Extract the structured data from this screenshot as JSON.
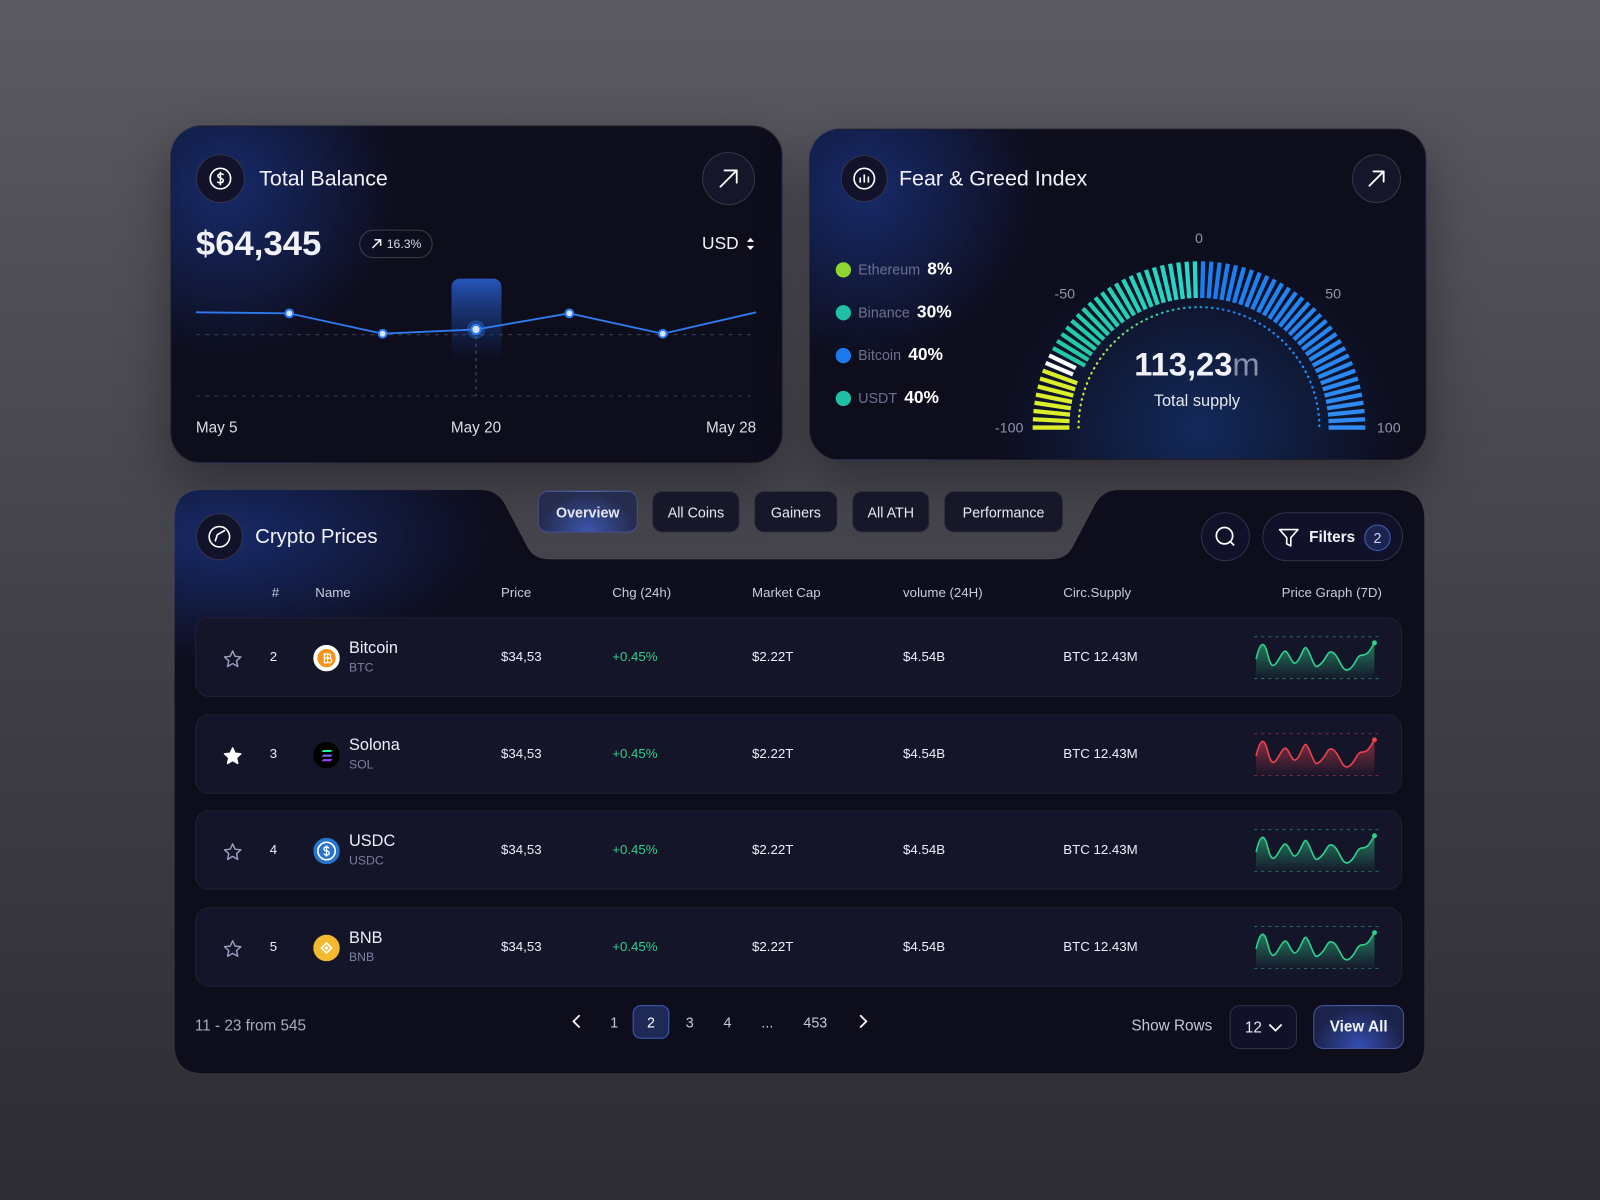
{
  "balance_card": {
    "title": "Total Balance",
    "amount": "$64,345",
    "change": "16.3%",
    "currency": "USD",
    "chart": {
      "type": "line",
      "categories": [
        "May 5",
        null,
        null,
        "May 20",
        null,
        null,
        "May 28"
      ],
      "values": [
        79,
        78,
        59,
        63,
        78,
        59,
        79
      ],
      "ylim": [
        0,
        100
      ],
      "color": "#2f7cf0",
      "highlight_index": 3
    }
  },
  "fear_greed_card": {
    "title": "Fear & Greed Index",
    "legend": [
      {
        "name": "Ethereum",
        "value": "8%",
        "color": "#8fd630"
      },
      {
        "name": "Binance",
        "value": "30%",
        "color": "#1fbfa5"
      },
      {
        "name": "Bitcoin",
        "value": "40%",
        "color": "#1a7bf0"
      },
      {
        "name": "USDT",
        "value": "40%",
        "color": "#1fbfa5"
      }
    ],
    "gauge": {
      "range": [
        -100,
        100
      ],
      "ticks": [
        -100,
        -50,
        0,
        50,
        100
      ]
    },
    "total": {
      "value": "113,23",
      "unit": "m",
      "label": "Total supply"
    }
  },
  "crypto_card": {
    "title": "Crypto Prices",
    "tabs": [
      "Overview",
      "All Coins",
      "Gainers",
      "All ATH",
      "Performance"
    ],
    "active_tab": 0,
    "filters": {
      "label": "Filters",
      "count": "2"
    },
    "columns": [
      "#",
      "Name",
      "Price",
      "Chg (24h)",
      "Market Cap",
      "volume (24H)",
      "Circ.Supply",
      "Price Graph (7D)"
    ],
    "rows": [
      {
        "favorite": false,
        "rank": 2,
        "name": "Bitcoin",
        "symbol": "BTC",
        "price": "$34,53",
        "change": "+0.45%",
        "market_cap": "$2.22T",
        "volume": "$4.54B",
        "supply": "BTC 12.43M",
        "graph_color": "#2fd08a"
      },
      {
        "favorite": true,
        "rank": 3,
        "name": "Solona",
        "symbol": "SOL",
        "price": "$34,53",
        "change": "+0.45%",
        "market_cap": "$2.22T",
        "volume": "$4.54B",
        "supply": "BTC 12.43M",
        "graph_color": "#e8424f"
      },
      {
        "favorite": false,
        "rank": 4,
        "name": "USDC",
        "symbol": "USDC",
        "price": "$34,53",
        "change": "+0.45%",
        "market_cap": "$2.22T",
        "volume": "$4.54B",
        "supply": "BTC 12.43M",
        "graph_color": "#2fd08a"
      },
      {
        "favorite": false,
        "rank": 5,
        "name": "BNB",
        "symbol": "BNB",
        "price": "$34,53",
        "change": "+0.45%",
        "market_cap": "$2.22T",
        "volume": "$4.54B",
        "supply": "BTC 12.43M",
        "graph_color": "#2fd08a"
      }
    ],
    "footer": {
      "range": "11 - 23 from 545",
      "pages": [
        "1",
        "2",
        "3",
        "4",
        "...",
        "453"
      ],
      "current_page": 1,
      "show_rows_label": "Show Rows",
      "rows_per_page": "12",
      "view_all": "View All"
    }
  }
}
